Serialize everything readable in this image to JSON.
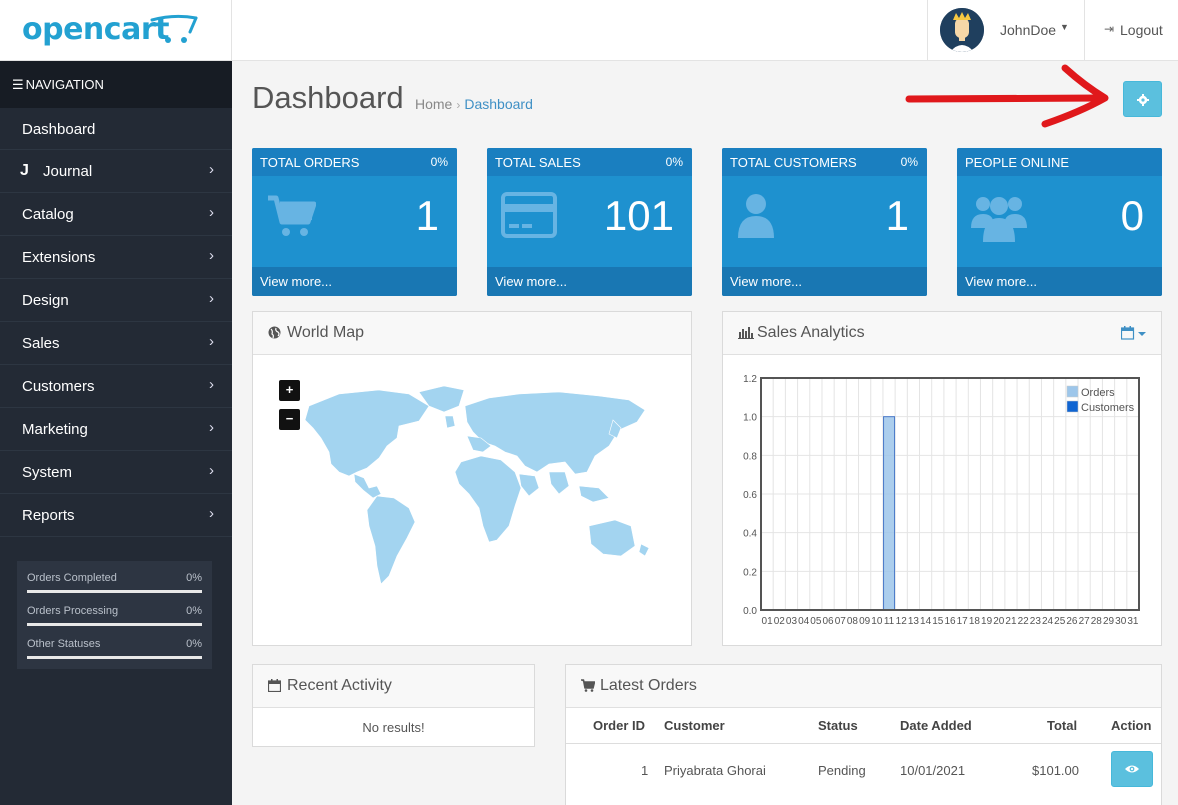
{
  "brand": {
    "name": "opencart",
    "color": "#23a1d1"
  },
  "header": {
    "user_name": "JohnDoe",
    "logout_label": "Logout"
  },
  "sidebar": {
    "nav_title": "NAVIGATION",
    "items": [
      {
        "label": "Dashboard",
        "has_children": false
      },
      {
        "label": "Journal",
        "has_children": true,
        "icon": "journal-j-icon"
      },
      {
        "label": "Catalog",
        "has_children": true
      },
      {
        "label": "Extensions",
        "has_children": true
      },
      {
        "label": "Design",
        "has_children": true
      },
      {
        "label": "Sales",
        "has_children": true
      },
      {
        "label": "Customers",
        "has_children": true
      },
      {
        "label": "Marketing",
        "has_children": true
      },
      {
        "label": "System",
        "has_children": true
      },
      {
        "label": "Reports",
        "has_children": true
      }
    ],
    "stats": [
      {
        "label": "Orders Completed",
        "value": "0%"
      },
      {
        "label": "Orders Processing",
        "value": "0%"
      },
      {
        "label": "Other Statuses",
        "value": "0%"
      }
    ]
  },
  "page": {
    "title": "Dashboard",
    "breadcrumb": {
      "home": "Home",
      "separator": "›",
      "current": "Dashboard"
    }
  },
  "tiles": [
    {
      "title": "TOTAL ORDERS",
      "percent": "0%",
      "value": "1",
      "more": "View more...",
      "icon": "shopping-cart-icon"
    },
    {
      "title": "TOTAL SALES",
      "percent": "0%",
      "value": "101",
      "more": "View more...",
      "icon": "credit-card-icon"
    },
    {
      "title": "TOTAL CUSTOMERS",
      "percent": "0%",
      "value": "1",
      "more": "View more...",
      "icon": "user-icon"
    },
    {
      "title": "PEOPLE ONLINE",
      "percent": "",
      "value": "0",
      "more": "View more...",
      "icon": "users-icon"
    }
  ],
  "world_map": {
    "title": "World Map",
    "zoom_in": "+",
    "zoom_out": "−"
  },
  "sales_analytics": {
    "title": "Sales Analytics"
  },
  "chart_data": {
    "type": "bar",
    "title": "",
    "xlabel": "",
    "ylabel": "",
    "categories": [
      "01",
      "02",
      "03",
      "04",
      "05",
      "06",
      "07",
      "08",
      "09",
      "10",
      "11",
      "12",
      "13",
      "14",
      "15",
      "16",
      "17",
      "18",
      "19",
      "20",
      "21",
      "22",
      "23",
      "24",
      "25",
      "26",
      "27",
      "28",
      "29",
      "30",
      "31"
    ],
    "series": [
      {
        "name": "Orders",
        "color": "#9dc6ea",
        "values": [
          0,
          0,
          0,
          0,
          0,
          0,
          0,
          0,
          0,
          0,
          1,
          0,
          0,
          0,
          0,
          0,
          0,
          0,
          0,
          0,
          0,
          0,
          0,
          0,
          0,
          0,
          0,
          0,
          0,
          0,
          0
        ]
      },
      {
        "name": "Customers",
        "color": "#1065d2",
        "values": [
          0,
          0,
          0,
          0,
          0,
          0,
          0,
          0,
          0,
          0,
          0,
          0,
          0,
          0,
          0,
          0,
          0,
          0,
          0,
          0,
          0,
          0,
          0,
          0,
          0,
          0,
          0,
          0,
          0,
          0,
          0
        ]
      }
    ],
    "ylim": [
      0,
      1.2
    ],
    "yticks": [
      "0.0",
      "0.2",
      "0.4",
      "0.6",
      "0.8",
      "1.0",
      "1.2"
    ],
    "grid": true,
    "legend": "top-right"
  },
  "recent_activity": {
    "title": "Recent Activity",
    "empty": "No results!"
  },
  "latest_orders": {
    "title": "Latest Orders",
    "columns": [
      "Order ID",
      "Customer",
      "Status",
      "Date Added",
      "Total",
      "Action"
    ],
    "rows": [
      {
        "order_id": "1",
        "customer": "Priyabrata Ghorai",
        "status": "Pending",
        "date_added": "10/01/2021",
        "total": "$101.00"
      }
    ]
  },
  "colors": {
    "sidebar": "#232a35",
    "tile": "#1e91cf",
    "info_button": "#5bc0de",
    "annotation_arrow": "#e0181b"
  }
}
